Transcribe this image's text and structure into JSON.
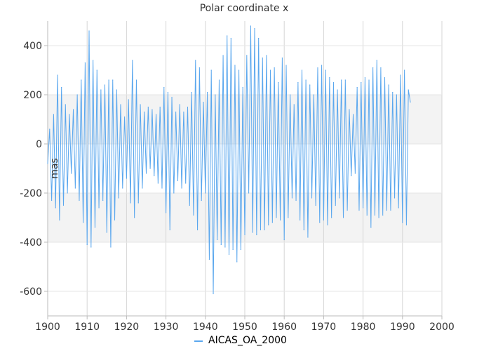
{
  "chart_data": {
    "type": "line",
    "title": "Polar coordinate x",
    "ylabel": "mas",
    "xlabel": "",
    "xlim": [
      1900,
      2000
    ],
    "ylim": [
      -700,
      500
    ],
    "x_ticks": [
      1900,
      1910,
      1920,
      1930,
      1940,
      1950,
      1960,
      1970,
      1980,
      1990,
      2000
    ],
    "y_ticks": [
      -600,
      -400,
      -200,
      0,
      200,
      400
    ],
    "y_bands": [
      [
        -400,
        -200
      ],
      [
        0,
        200
      ]
    ],
    "grid": true,
    "legend_position": "bottom-center",
    "colors": {
      "series": "#5aa7ee",
      "band": "#f3f3f3",
      "grid": "#d6d6d6",
      "axis": "#bbbbbb"
    },
    "series": [
      {
        "name": "AICAS_OA_2000",
        "x": [
          1900.0,
          1900.5,
          1901.0,
          1901.5,
          1902.0,
          1902.5,
          1903.0,
          1903.5,
          1904.0,
          1904.5,
          1905.0,
          1905.5,
          1906.0,
          1906.5,
          1907.0,
          1907.5,
          1908.0,
          1908.5,
          1909.0,
          1909.5,
          1910.0,
          1910.5,
          1911.0,
          1911.5,
          1912.0,
          1912.5,
          1913.0,
          1913.5,
          1914.0,
          1914.5,
          1915.0,
          1915.5,
          1916.0,
          1916.5,
          1917.0,
          1917.5,
          1918.0,
          1918.5,
          1919.0,
          1919.5,
          1920.0,
          1920.5,
          1921.0,
          1921.5,
          1922.0,
          1922.5,
          1923.0,
          1923.5,
          1924.0,
          1924.5,
          1925.0,
          1925.5,
          1926.0,
          1926.5,
          1927.0,
          1927.5,
          1928.0,
          1928.5,
          1929.0,
          1929.5,
          1930.0,
          1930.5,
          1931.0,
          1931.5,
          1932.0,
          1932.5,
          1933.0,
          1933.5,
          1934.0,
          1934.5,
          1935.0,
          1935.5,
          1936.0,
          1936.5,
          1937.0,
          1937.5,
          1938.0,
          1938.5,
          1939.0,
          1939.5,
          1940.0,
          1940.5,
          1941.0,
          1941.5,
          1942.0,
          1942.5,
          1943.0,
          1943.5,
          1944.0,
          1944.5,
          1945.0,
          1945.5,
          1946.0,
          1946.5,
          1947.0,
          1947.5,
          1948.0,
          1948.5,
          1949.0,
          1949.5,
          1950.0,
          1950.5,
          1951.0,
          1951.5,
          1952.0,
          1952.5,
          1953.0,
          1953.5,
          1954.0,
          1954.5,
          1955.0,
          1955.5,
          1956.0,
          1956.5,
          1957.0,
          1957.5,
          1958.0,
          1958.5,
          1959.0,
          1959.5,
          1960.0,
          1960.5,
          1961.0,
          1961.5,
          1962.0,
          1962.5,
          1963.0,
          1963.5,
          1964.0,
          1964.5,
          1965.0,
          1965.5,
          1966.0,
          1966.5,
          1967.0,
          1967.5,
          1968.0,
          1968.5,
          1969.0,
          1969.5,
          1970.0,
          1970.5,
          1971.0,
          1971.5,
          1972.0,
          1972.5,
          1973.0,
          1973.5,
          1974.0,
          1974.5,
          1975.0,
          1975.5,
          1976.0,
          1976.5,
          1977.0,
          1977.5,
          1978.0,
          1978.5,
          1979.0,
          1979.5,
          1980.0,
          1980.5,
          1981.0,
          1981.5,
          1982.0,
          1982.5,
          1983.0,
          1983.5,
          1984.0,
          1984.5,
          1985.0,
          1985.5,
          1986.0,
          1986.5,
          1987.0,
          1987.5,
          1988.0,
          1988.5,
          1989.0,
          1989.5,
          1990.0,
          1990.5,
          1991.0,
          1991.5,
          1992.0
        ],
        "values": [
          -80,
          60,
          -230,
          120,
          -260,
          280,
          -310,
          230,
          -250,
          160,
          -200,
          120,
          -120,
          140,
          -180,
          200,
          -230,
          260,
          -320,
          330,
          -410,
          460,
          -420,
          340,
          -340,
          300,
          -260,
          220,
          -230,
          240,
          -360,
          260,
          -420,
          260,
          -310,
          220,
          -220,
          160,
          -180,
          110,
          -140,
          180,
          -240,
          340,
          -300,
          260,
          -240,
          160,
          -180,
          130,
          -120,
          150,
          -100,
          140,
          -130,
          120,
          -160,
          150,
          -180,
          230,
          -280,
          210,
          -350,
          190,
          -200,
          130,
          -150,
          160,
          -180,
          130,
          -160,
          150,
          -250,
          210,
          -290,
          340,
          -350,
          310,
          -230,
          170,
          -200,
          210,
          -470,
          300,
          -610,
          200,
          -390,
          260,
          -410,
          360,
          -420,
          440,
          -450,
          430,
          -430,
          320,
          -480,
          300,
          -430,
          230,
          -370,
          360,
          -200,
          480,
          -360,
          470,
          -370,
          430,
          -350,
          350,
          -350,
          360,
          -330,
          300,
          -320,
          310,
          -300,
          250,
          -310,
          350,
          -390,
          320,
          -300,
          200,
          -220,
          160,
          -230,
          250,
          -310,
          300,
          -350,
          260,
          -380,
          240,
          -220,
          200,
          -250,
          310,
          -320,
          320,
          -310,
          300,
          -330,
          270,
          -300,
          250,
          -250,
          220,
          -220,
          260,
          -300,
          260,
          -270,
          140,
          -130,
          120,
          -120,
          230,
          -270,
          250,
          -260,
          270,
          -290,
          260,
          -340,
          310,
          -290,
          340,
          -300,
          310,
          -290,
          270,
          -270,
          240,
          -270,
          210,
          -220,
          200,
          -260,
          280,
          -320,
          300,
          -330,
          220,
          170
        ]
      }
    ]
  }
}
